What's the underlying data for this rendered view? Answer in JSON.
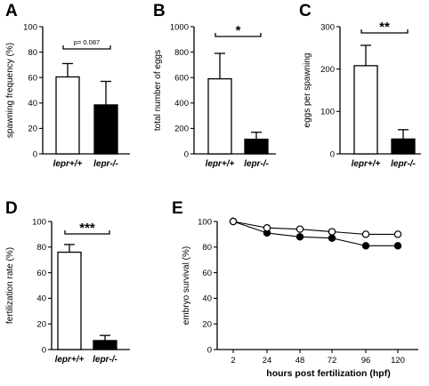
{
  "chart_data": [
    {
      "panel": "A",
      "type": "bar",
      "categories": [
        "lepr+/+",
        "lepr-/-"
      ],
      "values": [
        60.5,
        38.5
      ],
      "errors": [
        10.5,
        18.5
      ],
      "fills": [
        "#ffffff",
        "#000000"
      ],
      "ylabel": "spawning frequency (%)",
      "ylim": [
        0,
        100
      ],
      "yticks": [
        0,
        20,
        40,
        60,
        80,
        100
      ],
      "annotation": "p= 0.087"
    },
    {
      "panel": "B",
      "type": "bar",
      "categories": [
        "lepr+/+",
        "lepr-/-"
      ],
      "values": [
        590,
        115
      ],
      "errors": [
        200,
        55
      ],
      "fills": [
        "#ffffff",
        "#000000"
      ],
      "ylabel": "total number of eggs",
      "ylim": [
        0,
        1000
      ],
      "yticks": [
        0,
        200,
        400,
        600,
        800,
        1000
      ],
      "annotation": "*"
    },
    {
      "panel": "C",
      "type": "bar",
      "categories": [
        "lepr+/+",
        "lepr-/-"
      ],
      "values": [
        208,
        35
      ],
      "errors": [
        48,
        22
      ],
      "fills": [
        "#ffffff",
        "#000000"
      ],
      "ylabel": "eggs per spawning",
      "ylim": [
        0,
        300
      ],
      "yticks": [
        0,
        100,
        200,
        300
      ],
      "annotation": "**"
    },
    {
      "panel": "D",
      "type": "bar",
      "categories": [
        "lepr+/+",
        "lepr-/-"
      ],
      "values": [
        76,
        7
      ],
      "errors": [
        6,
        4
      ],
      "fills": [
        "#ffffff",
        "#000000"
      ],
      "ylabel": "fertilization rate  (%)",
      "ylim": [
        0,
        100
      ],
      "yticks": [
        0,
        20,
        40,
        60,
        80,
        100
      ],
      "annotation": "***"
    },
    {
      "panel": "E",
      "type": "line",
      "x": [
        2,
        24,
        48,
        72,
        96,
        120
      ],
      "xticks": [
        2,
        24,
        48,
        72,
        96,
        120
      ],
      "series": [
        {
          "marker": "open-circle",
          "values": [
            100,
            95,
            94,
            92,
            90,
            90
          ]
        },
        {
          "marker": "filled-circle",
          "values": [
            100,
            91,
            88,
            87,
            81,
            81
          ]
        }
      ],
      "ylabel": "embryo survival  (%)",
      "xlabel": "hours post fertilization (hpf)",
      "ylim": [
        0,
        100
      ],
      "yticks": [
        0,
        20,
        40,
        60,
        80,
        100
      ]
    }
  ]
}
